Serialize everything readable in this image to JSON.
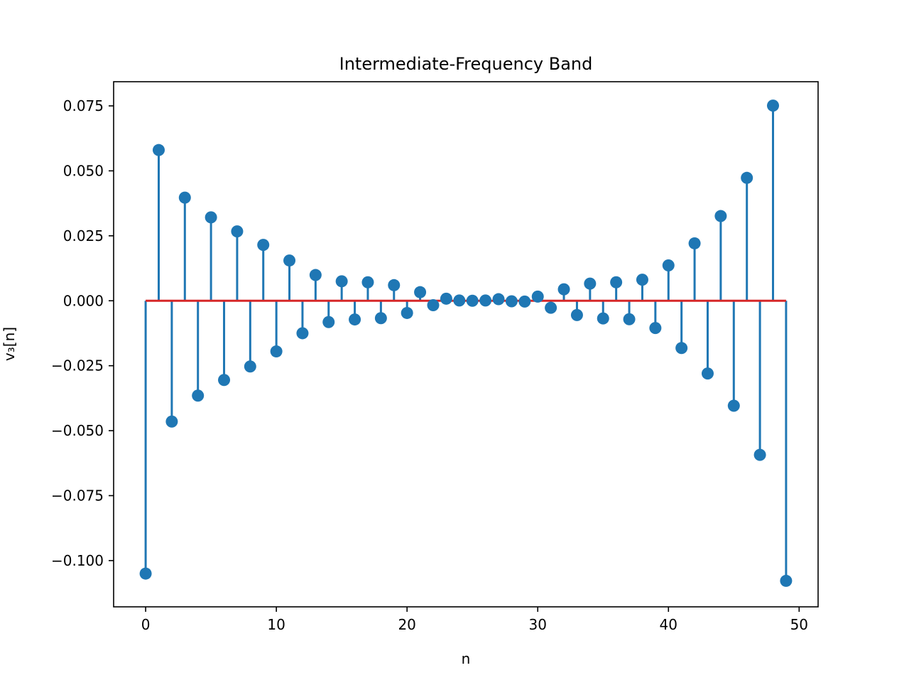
{
  "chart_data": {
    "type": "stem",
    "title": "Intermediate-Frequency Band",
    "xlabel": "n",
    "ylabel": "v₃[n]",
    "xlim": [
      -2.45,
      51.45
    ],
    "ylim": [
      -0.1178,
      0.0843
    ],
    "xticks": [
      0,
      10,
      20,
      30,
      40,
      50
    ],
    "xtick_labels": [
      "0",
      "10",
      "20",
      "30",
      "40",
      "50"
    ],
    "yticks": [
      0.075,
      0.05,
      0.025,
      0.0,
      -0.025,
      -0.05,
      -0.075,
      -0.1
    ],
    "ytick_labels": [
      "0.075",
      "0.050",
      "0.025",
      "0.000",
      "−0.025",
      "−0.050",
      "−0.075",
      "−0.100"
    ],
    "grid": false,
    "baseline": 0.0,
    "colors": {
      "stem": "#1f77b4",
      "marker": "#1f77b4",
      "baseline": "#d62728"
    },
    "x": [
      0,
      1,
      2,
      3,
      4,
      5,
      6,
      7,
      8,
      9,
      10,
      11,
      12,
      13,
      14,
      15,
      16,
      17,
      18,
      19,
      20,
      21,
      22,
      23,
      24,
      25,
      26,
      27,
      28,
      29,
      30,
      31,
      32,
      33,
      34,
      35,
      36,
      37,
      38,
      39,
      40,
      41,
      42,
      43,
      44,
      45,
      46,
      47,
      48,
      49
    ],
    "values": [
      -0.105,
      0.058,
      -0.0465,
      0.0397,
      -0.0365,
      0.0321,
      -0.0305,
      0.0267,
      -0.0253,
      0.0215,
      -0.0195,
      0.0155,
      -0.0125,
      0.0099,
      -0.0082,
      0.0075,
      -0.0072,
      0.0071,
      -0.0067,
      0.006,
      -0.0047,
      0.0033,
      -0.0017,
      0.0008,
      0.0001,
      0.0,
      0.0001,
      0.0006,
      -0.0002,
      -0.0003,
      0.0016,
      -0.0027,
      0.0044,
      -0.0055,
      0.0066,
      -0.0068,
      0.0071,
      -0.0071,
      0.0081,
      -0.0105,
      0.0136,
      -0.0182,
      0.0221,
      -0.028,
      0.0326,
      -0.0404,
      0.0473,
      -0.0593,
      0.0751,
      -0.1078
    ]
  }
}
